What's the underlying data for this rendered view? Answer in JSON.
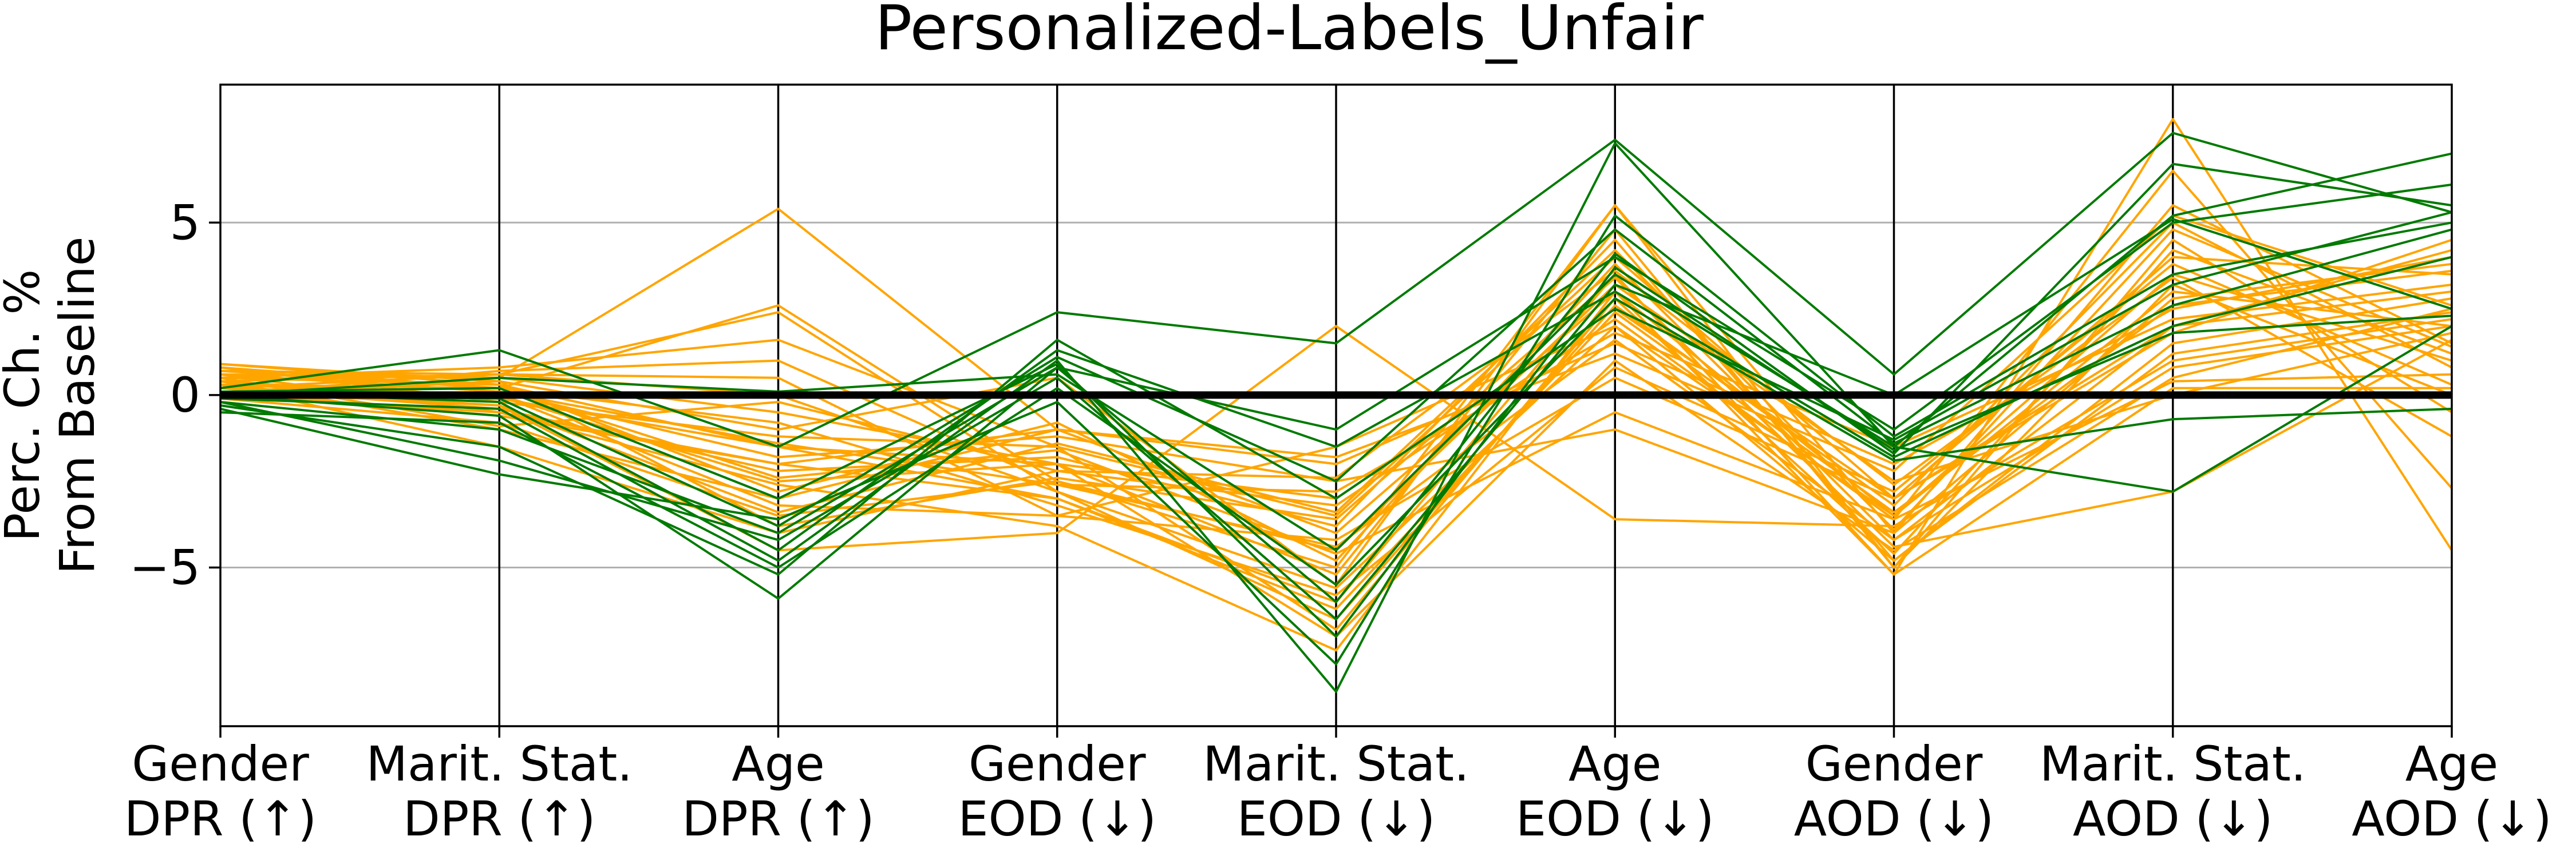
{
  "chart_data": {
    "type": "line",
    "subtype": "parallel-coordinates",
    "title": "Personalized-Labels_Unfair",
    "ylabel_lines": [
      "Perc. Ch. %",
      "From Baseline"
    ],
    "categories": [
      [
        "Gender",
        "DPR (↑)"
      ],
      [
        "Marit. Stat.",
        "DPR (↑)"
      ],
      [
        "Age",
        "DPR (↑)"
      ],
      [
        "Gender",
        "EOD (↓)"
      ],
      [
        "Marit. Stat.",
        "EOD (↓)"
      ],
      [
        "Age",
        "EOD (↓)"
      ],
      [
        "Gender",
        "AOD (↓)"
      ],
      [
        "Marit. Stat.",
        "AOD (↓)"
      ],
      [
        "Age",
        "AOD (↓)"
      ]
    ],
    "ylim": [
      -9.6,
      9.0
    ],
    "yticks": [
      -5,
      0,
      5
    ],
    "ytick_labels": [
      "−5",
      "0",
      "5"
    ],
    "grid": "horizontal",
    "baseline": 0,
    "colors": {
      "green": "#007a00",
      "orange": "#ffa500",
      "baseline": "#000000",
      "grid": "#b0b0b0"
    },
    "series": [
      {
        "color": "orange",
        "values": [
          0.9,
          0.3,
          -1.5,
          -2.0,
          -3.0,
          2.5,
          -3.0,
          2.0,
          3.0
        ]
      },
      {
        "color": "orange",
        "values": [
          0.7,
          0.5,
          5.4,
          -1.0,
          -4.0,
          3.0,
          -3.5,
          3.0,
          2.0
        ]
      },
      {
        "color": "orange",
        "values": [
          0.8,
          0.2,
          2.6,
          -2.5,
          -5.0,
          5.5,
          -4.0,
          5.5,
          1.5
        ]
      },
      {
        "color": "orange",
        "values": [
          0.6,
          -0.5,
          -2.0,
          -3.0,
          -6.0,
          3.5,
          -5.2,
          8.0,
          -4.5
        ]
      },
      {
        "color": "orange",
        "values": [
          0.5,
          0.8,
          1.6,
          -1.5,
          -3.5,
          4.0,
          -3.0,
          4.0,
          3.5
        ]
      },
      {
        "color": "orange",
        "values": [
          0.4,
          -1.0,
          -3.0,
          -1.0,
          -2.0,
          1.5,
          -2.0,
          2.5,
          4.0
        ]
      },
      {
        "color": "orange",
        "values": [
          0.3,
          0.0,
          -2.5,
          -2.0,
          -7.0,
          1.0,
          -4.5,
          0.5,
          2.5
        ]
      },
      {
        "color": "orange",
        "values": [
          0.2,
          0.6,
          0.5,
          -3.5,
          -1.5,
          2.0,
          -3.5,
          3.5,
          1.0
        ]
      },
      {
        "color": "orange",
        "values": [
          0.1,
          -0.3,
          -4.5,
          -4.0,
          2.0,
          -3.6,
          -3.8,
          1.0,
          2.2
        ]
      },
      {
        "color": "orange",
        "values": [
          0.0,
          0.4,
          -1.0,
          0.5,
          -5.5,
          5.5,
          -5.0,
          4.5,
          -0.5
        ]
      },
      {
        "color": "orange",
        "values": [
          -0.1,
          -0.8,
          -3.5,
          -2.5,
          -4.5,
          3.2,
          -2.5,
          0.0,
          1.8
        ]
      },
      {
        "color": "orange",
        "values": [
          0.6,
          0.1,
          -1.8,
          -1.2,
          -2.5,
          -1.0,
          -4.0,
          2.8,
          3.8
        ]
      },
      {
        "color": "orange",
        "values": [
          0.4,
          0.6,
          0.0,
          -2.8,
          -6.5,
          2.6,
          -3.2,
          5.0,
          0.8
        ]
      },
      {
        "color": "orange",
        "values": [
          0.2,
          -0.4,
          -2.2,
          -1.8,
          -3.8,
          4.5,
          -4.8,
          1.5,
          2.8
        ]
      },
      {
        "color": "orange",
        "values": [
          0.7,
          0.2,
          -0.8,
          -3.2,
          -5.8,
          0.8,
          -2.8,
          3.8,
          0.3
        ]
      },
      {
        "color": "orange",
        "values": [
          0.3,
          -1.5,
          -4.0,
          -2.2,
          -3.2,
          2.2,
          -3.6,
          6.5,
          -2.7
        ]
      },
      {
        "color": "orange",
        "values": [
          0.5,
          0.3,
          -2.8,
          -0.8,
          -4.8,
          3.8,
          -4.2,
          0.8,
          2.0
        ]
      },
      {
        "color": "orange",
        "values": [
          0.0,
          0.7,
          1.0,
          -2.6,
          -2.8,
          1.8,
          -1.5,
          2.2,
          3.2
        ]
      },
      {
        "color": "orange",
        "values": [
          0.8,
          -0.2,
          -1.2,
          -1.5,
          -6.8,
          2.8,
          -4.6,
          4.2,
          1.2
        ]
      },
      {
        "color": "orange",
        "values": [
          0.2,
          0.0,
          -3.2,
          -3.5,
          -4.2,
          0.5,
          -3.0,
          1.8,
          4.5
        ]
      },
      {
        "color": "orange",
        "values": [
          0.6,
          0.5,
          -0.5,
          -2.0,
          -5.2,
          4.8,
          -5.0,
          3.2,
          0.0
        ]
      },
      {
        "color": "orange",
        "values": [
          0.1,
          -0.6,
          -2.0,
          -1.0,
          -1.8,
          1.2,
          -2.2,
          5.2,
          2.6
        ]
      },
      {
        "color": "orange",
        "values": [
          0.9,
          0.4,
          -3.8,
          -2.4,
          -3.6,
          3.4,
          -4.4,
          -2.8,
          1.6
        ]
      },
      {
        "color": "orange",
        "values": [
          0.4,
          -0.1,
          -1.5,
          -3.0,
          -6.2,
          2.4,
          -3.4,
          2.6,
          3.6
        ]
      },
      {
        "color": "orange",
        "values": [
          0.3,
          0.2,
          -2.4,
          -1.6,
          -4.6,
          -0.5,
          -3.6,
          0.4,
          0.6
        ]
      },
      {
        "color": "orange",
        "values": [
          0.5,
          -0.9,
          -0.2,
          -2.2,
          -2.4,
          3.6,
          -2.6,
          3.4,
          -1.2
        ]
      },
      {
        "color": "orange",
        "values": [
          0.7,
          0.6,
          2.4,
          -2.8,
          -5.6,
          2.0,
          -4.8,
          1.2,
          2.4
        ]
      },
      {
        "color": "orange",
        "values": [
          0.2,
          -0.3,
          -3.4,
          -1.4,
          -3.4,
          4.2,
          -3.9,
          4.8,
          1.4
        ]
      },
      {
        "color": "orange",
        "values": [
          0.6,
          0.1,
          -1.4,
          -2.6,
          -4.4,
          1.6,
          -4.2,
          2.0,
          4.2
        ]
      },
      {
        "color": "orange",
        "values": [
          0.0,
          -0.5,
          -2.6,
          -3.8,
          -7.4,
          3.0,
          -5.2,
          0.2,
          0.2
        ]
      },
      {
        "color": "green",
        "values": [
          0.2,
          1.3,
          -1.5,
          2.4,
          1.5,
          7.4,
          0.6,
          7.6,
          5.3
        ]
      },
      {
        "color": "green",
        "values": [
          -0.1,
          -0.4,
          -4.8,
          1.0,
          -8.6,
          7.3,
          -1.5,
          5.2,
          7.0
        ]
      },
      {
        "color": "green",
        "values": [
          0.0,
          -0.6,
          -5.9,
          0.8,
          -1.0,
          4.0,
          -1.0,
          5.0,
          6.1
        ]
      },
      {
        "color": "green",
        "values": [
          -0.4,
          -2.3,
          -3.6,
          -0.2,
          -7.8,
          5.2,
          -1.2,
          3.5,
          5.0
        ]
      },
      {
        "color": "green",
        "values": [
          0.1,
          -0.2,
          -4.5,
          1.3,
          -1.5,
          3.0,
          -1.8,
          2.0,
          4.0
        ]
      },
      {
        "color": "green",
        "values": [
          -0.2,
          -1.0,
          -4.0,
          0.8,
          -6.0,
          4.1,
          -1.7,
          6.7,
          5.5
        ]
      },
      {
        "color": "green",
        "values": [
          0.0,
          0.5,
          0.1,
          0.6,
          -4.5,
          3.5,
          -1.5,
          -2.8,
          2.0
        ]
      },
      {
        "color": "green",
        "values": [
          -0.3,
          -1.5,
          -5.2,
          1.6,
          -3.0,
          2.5,
          -1.3,
          3.2,
          5.3
        ]
      },
      {
        "color": "green",
        "values": [
          0.1,
          0.2,
          -3.0,
          0.9,
          -7.0,
          3.7,
          -1.6,
          1.8,
          2.3
        ]
      },
      {
        "color": "green",
        "values": [
          -0.5,
          -0.8,
          -5.0,
          0.2,
          -5.5,
          2.8,
          -1.9,
          -0.7,
          -0.4
        ]
      },
      {
        "color": "green",
        "values": [
          0.0,
          -0.1,
          -3.8,
          1.1,
          -2.5,
          4.8,
          -1.4,
          2.6,
          4.8
        ]
      },
      {
        "color": "green",
        "values": [
          -0.2,
          -1.9,
          -4.2,
          0.5,
          -6.5,
          3.2,
          0.0,
          5.1,
          2.5
        ]
      }
    ]
  }
}
